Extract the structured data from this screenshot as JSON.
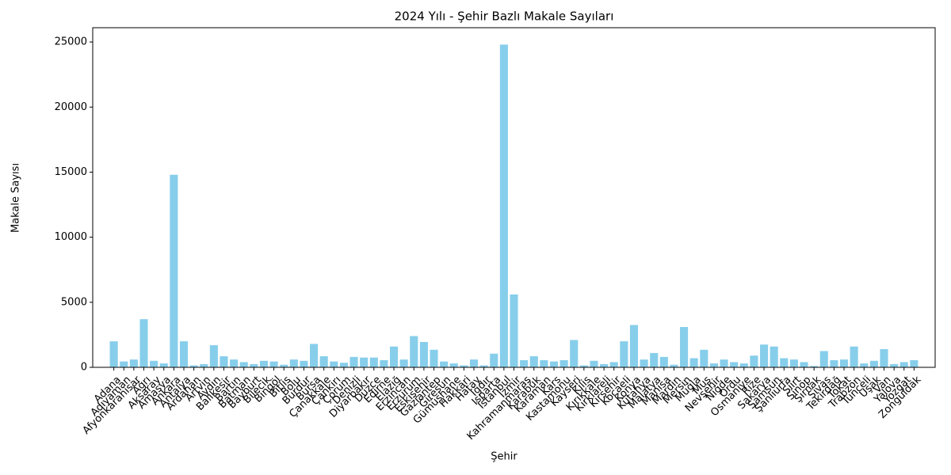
{
  "chart_data": {
    "type": "bar",
    "title": "2024 Yılı - Şehir Bazlı Makale Sayıları",
    "x_label": "Şehir",
    "y_label": "Makale Sayısı",
    "color": "#87ceeb",
    "categories": [
      "Adana",
      "Adıyaman",
      "Afyonkarahisar",
      "Ağrı",
      "Aksaray",
      "Amasya",
      "Ankara",
      "Antalya",
      "Ardahan",
      "Artvin",
      "Aydın",
      "Balıkesir",
      "Bartın",
      "Batman",
      "Bayburt",
      "Bilecik",
      "Bingöl",
      "Bitlis",
      "Bolu",
      "Burdur",
      "Bursa",
      "Çanakkale",
      "Çankırı",
      "Çorum",
      "Denizli",
      "Diyarbakır",
      "Düzce",
      "Edirne",
      "Elazığ",
      "Erzincan",
      "Erzurum",
      "Eskişehir",
      "Gaziantep",
      "Giresun",
      "Gümüşhane",
      "Hakkari",
      "Hatay",
      "Iğdır",
      "Isparta",
      "İstanbul",
      "İzmir",
      "Kahramanmaraş",
      "Karabük",
      "Karaman",
      "Kars",
      "Kastamonu",
      "Kayseri",
      "Kilis",
      "Kırıkkale",
      "Kırklareli",
      "Kırşehir",
      "Kocaeli",
      "Konya",
      "Kütahya",
      "Malatya",
      "Manisa",
      "Mardin",
      "Mersin",
      "Muğla",
      "Muş",
      "Nevşehir",
      "Niğde",
      "Ordu",
      "Osmaniye",
      "Rize",
      "Sakarya",
      "Samsun",
      "Şanlıurfa",
      "Siirt",
      "Sinop",
      "Şırnak",
      "Sivas",
      "Tekirdağ",
      "Tokat",
      "Trabzon",
      "Tunceli",
      "Uşak",
      "Van",
      "Yalova",
      "Yozgat",
      "Zonguldak"
    ],
    "values": [
      2000,
      450,
      600,
      3700,
      500,
      300,
      14800,
      2000,
      150,
      250,
      1700,
      850,
      600,
      400,
      250,
      500,
      450,
      200,
      600,
      500,
      1800,
      850,
      450,
      350,
      800,
      750,
      750,
      550,
      1600,
      600,
      2400,
      1950,
      1350,
      450,
      300,
      150,
      600,
      150,
      1050,
      24800,
      5600,
      550,
      850,
      550,
      450,
      550,
      2100,
      150,
      500,
      250,
      400,
      2000,
      3250,
      600,
      1100,
      800,
      200,
      3100,
      700,
      1350,
      300,
      600,
      400,
      300,
      900,
      1750,
      1600,
      700,
      600,
      400,
      100,
      1250,
      550,
      600,
      1600,
      300,
      500,
      1400,
      250,
      400,
      550
    ],
    "ylim": [
      0,
      26100
    ],
    "yticks": [
      0,
      5000,
      10000,
      15000,
      20000,
      25000
    ],
    "grid": false
  }
}
